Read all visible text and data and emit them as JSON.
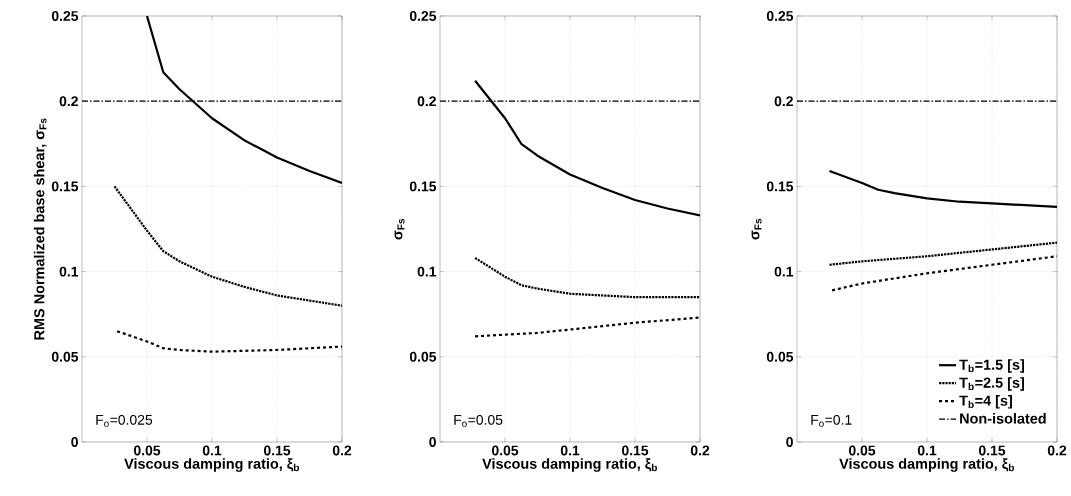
{
  "chart_data": [
    {
      "type": "line",
      "xlabel": "Viscous damping ratio, ξ$_{b}$",
      "ylabel": "RMS Normalized base shear, σ$_{Fs}$",
      "xlim": [
        0,
        0.2
      ],
      "ylim": [
        0,
        0.25
      ],
      "xticks": [
        0.05,
        0.1,
        0.15,
        0.2
      ],
      "yticks": [
        0,
        0.05,
        0.1,
        0.15,
        0.2,
        0.25
      ],
      "grid": true,
      "series": [
        {
          "color": "#000000",
          "line_style": "solid",
          "x": [
            0.05,
            0.0625,
            0.075,
            0.1,
            0.125,
            0.15,
            0.175,
            0.2
          ],
          "values": [
            0.25,
            0.217,
            0.207,
            0.19,
            0.177,
            0.167,
            0.159,
            0.152
          ]
        },
        {
          "color": "#000000",
          "line_style": "dotted",
          "x": [
            0.025,
            0.05,
            0.0625,
            0.075,
            0.1,
            0.125,
            0.15,
            0.175,
            0.2
          ],
          "values": [
            0.15,
            0.124,
            0.112,
            0.106,
            0.097,
            0.091,
            0.086,
            0.083,
            0.08
          ]
        },
        {
          "color": "#000000",
          "line_style": "dashed",
          "x": [
            0.027,
            0.05,
            0.0625,
            0.075,
            0.1,
            0.15,
            0.2
          ],
          "values": [
            0.065,
            0.059,
            0.055,
            0.054,
            0.053,
            0.054,
            0.056
          ]
        }
      ],
      "ref_lines": [
        {
          "axis": "y",
          "value": 0.2,
          "color": "#000000"
        }
      ],
      "annotations": [
        "F$_{o}$=0.025"
      ]
    },
    {
      "type": "line",
      "xlabel": "Viscous damping ratio, ξ$_{b}$",
      "ylabel": "σ$_{Fs}$",
      "xlim": [
        0,
        0.2
      ],
      "ylim": [
        0,
        0.25
      ],
      "xticks": [
        0.05,
        0.1,
        0.15,
        0.2
      ],
      "yticks": [
        0,
        0.05,
        0.1,
        0.15,
        0.2,
        0.25
      ],
      "grid": true,
      "series": [
        {
          "color": "#000000",
          "line_style": "solid",
          "x": [
            0.027,
            0.05,
            0.0625,
            0.075,
            0.1,
            0.125,
            0.15,
            0.175,
            0.2
          ],
          "values": [
            0.212,
            0.19,
            0.175,
            0.168,
            0.157,
            0.149,
            0.142,
            0.137,
            0.133
          ]
        },
        {
          "color": "#000000",
          "line_style": "dotted",
          "x": [
            0.027,
            0.05,
            0.0625,
            0.075,
            0.1,
            0.15,
            0.2
          ],
          "values": [
            0.108,
            0.097,
            0.092,
            0.09,
            0.087,
            0.085,
            0.085
          ]
        },
        {
          "color": "#000000",
          "line_style": "dashed",
          "x": [
            0.027,
            0.05,
            0.075,
            0.1,
            0.125,
            0.15,
            0.2
          ],
          "values": [
            0.062,
            0.063,
            0.064,
            0.066,
            0.068,
            0.07,
            0.073
          ]
        }
      ],
      "ref_lines": [
        {
          "axis": "y",
          "value": 0.2,
          "color": "#000000"
        }
      ],
      "annotations": [
        "F$_{o}$=0.05"
      ]
    },
    {
      "type": "line",
      "xlabel": "Viscous damping ratio, ξ$_{b}$",
      "ylabel": "σ$_{Fs}$",
      "xlim": [
        0,
        0.2
      ],
      "ylim": [
        0,
        0.25
      ],
      "xticks": [
        0.05,
        0.1,
        0.15,
        0.2
      ],
      "yticks": [
        0,
        0.05,
        0.1,
        0.15,
        0.2,
        0.25
      ],
      "grid": true,
      "legend": "bottom right",
      "series": [
        {
          "name": "T$_{b}$=1.5 [s]",
          "color": "#000000",
          "line_style": "solid",
          "x": [
            0.025,
            0.05,
            0.0625,
            0.075,
            0.1,
            0.125,
            0.15,
            0.2
          ],
          "values": [
            0.159,
            0.152,
            0.148,
            0.146,
            0.143,
            0.141,
            0.14,
            0.138
          ]
        },
        {
          "name": "T$_{b}$=2.5 [s]",
          "color": "#000000",
          "line_style": "dotted",
          "x": [
            0.025,
            0.05,
            0.1,
            0.15,
            0.2
          ],
          "values": [
            0.104,
            0.106,
            0.109,
            0.113,
            0.117
          ]
        },
        {
          "name": "T$_{b}$=4 [s]",
          "color": "#000000",
          "line_style": "dashed",
          "x": [
            0.027,
            0.05,
            0.1,
            0.15,
            0.2
          ],
          "values": [
            0.089,
            0.093,
            0.099,
            0.104,
            0.109
          ]
        }
      ],
      "ref_lines": [
        {
          "axis": "y",
          "value": 0.2,
          "color": "#000000",
          "label": "Non-isolated"
        }
      ],
      "annotations": [
        "F$_{o}$=0.1"
      ]
    }
  ]
}
